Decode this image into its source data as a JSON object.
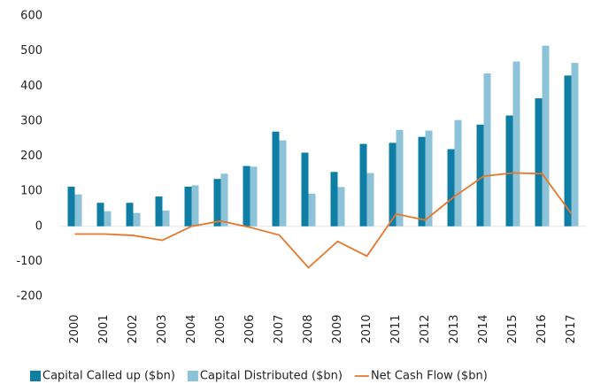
{
  "chart_data": {
    "type": "bar_line",
    "categories": [
      "2000",
      "2001",
      "2002",
      "2003",
      "2004",
      "2005",
      "2006",
      "2007",
      "2008",
      "2009",
      "2010",
      "2011",
      "2012",
      "2013",
      "2014",
      "2015",
      "2016",
      "2017"
    ],
    "series": [
      {
        "name": "Capital Called up ($bn)",
        "type": "bar",
        "color": "#0f7ea5",
        "values": [
          113,
          67,
          67,
          85,
          113,
          135,
          172,
          270,
          210,
          155,
          235,
          238,
          255,
          220,
          290,
          316,
          365,
          430
        ]
      },
      {
        "name": "Capital Distributed ($bn)",
        "type": "bar",
        "color": "#8dc3d8",
        "values": [
          91,
          43,
          38,
          45,
          117,
          150,
          170,
          245,
          93,
          112,
          152,
          275,
          273,
          303,
          436,
          470,
          515,
          466
        ]
      },
      {
        "name": "Net Cash Flow ($bn)",
        "type": "line",
        "color": "#e8772b",
        "values": [
          -22,
          -22,
          -26,
          -40,
          0,
          15,
          -3,
          -25,
          -118,
          -43,
          -85,
          35,
          18,
          85,
          143,
          152,
          150,
          36
        ]
      }
    ],
    "ylim": [
      -200,
      600
    ],
    "yticks": [
      -200,
      -100,
      0,
      100,
      200,
      300,
      400,
      500,
      600
    ],
    "grid": false,
    "legend": "bottom"
  }
}
